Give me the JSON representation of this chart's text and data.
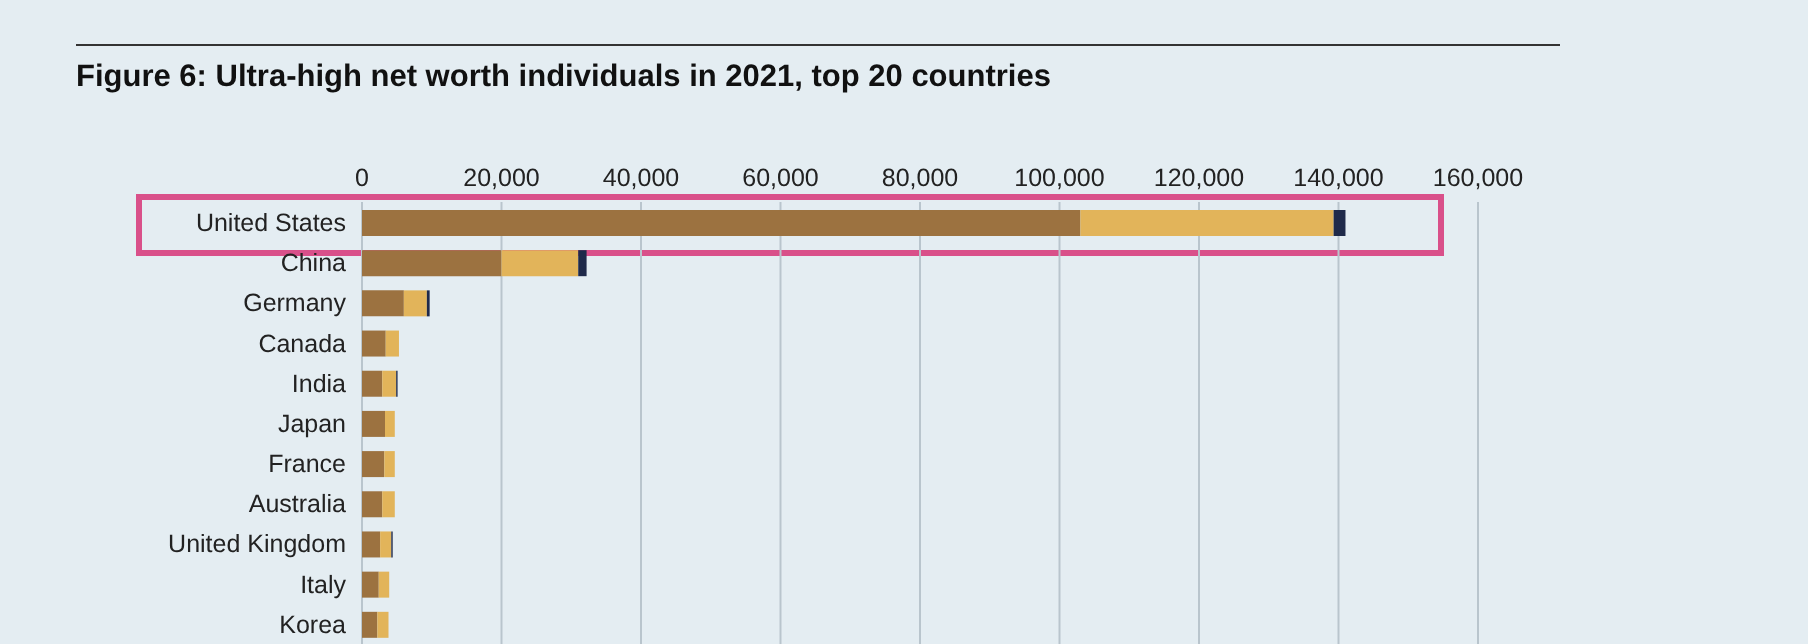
{
  "chart_data": {
    "type": "bar",
    "orientation": "horizontal",
    "stacked": true,
    "title": "Figure 6: Ultra-high net worth individuals in 2021, top 20 countries",
    "categories": [
      "United States",
      "China",
      "Germany",
      "Canada",
      "India",
      "Japan",
      "France",
      "Australia",
      "United Kingdom",
      "Italy",
      "Korea"
    ],
    "series": [
      {
        "color": "#9c7240",
        "values": [
          103000,
          20000,
          6000,
          3400,
          2900,
          3300,
          3200,
          2900,
          2600,
          2400,
          2200
        ]
      },
      {
        "color": "#e2b45a",
        "values": [
          36300,
          11000,
          3300,
          1900,
          2000,
          1400,
          1500,
          1800,
          1600,
          1500,
          1600
        ]
      },
      {
        "color": "#1f2a4a",
        "values": [
          1700,
          1200,
          400,
          0,
          200,
          0,
          0,
          0,
          200,
          0,
          0
        ]
      }
    ],
    "xlim": [
      0,
      160000
    ],
    "xticks": [
      {
        "value": 0,
        "label": "0"
      },
      {
        "value": 20000,
        "label": "20,000"
      },
      {
        "value": 40000,
        "label": "40,000"
      },
      {
        "value": 60000,
        "label": "60,000"
      },
      {
        "value": 80000,
        "label": "80,000"
      },
      {
        "value": 100000,
        "label": "100,000"
      },
      {
        "value": 120000,
        "label": "120,000"
      },
      {
        "value": 140000,
        "label": "140,000"
      },
      {
        "value": 160000,
        "label": "160,000"
      }
    ],
    "grid": "x",
    "legend": false
  }
}
